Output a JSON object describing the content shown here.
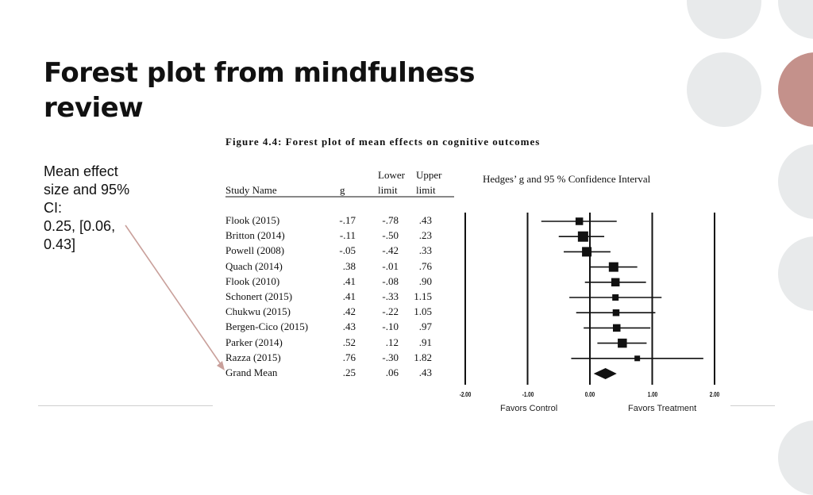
{
  "slide": {
    "title_line1": "Forest plot from mindfulness",
    "title_line2": "review",
    "note_lines": [
      "Mean effect",
      "size and 95%",
      "CI:",
      "0.25, [0.06,",
      "0.43]"
    ]
  },
  "colors": {
    "accent_rose": "#c4918b",
    "deco_gray": "#e8eaeb",
    "arrow": "#c9a09b"
  },
  "chart_data": {
    "type": "forest",
    "title": "Figure 4.4: Forest plot of mean effects on cognitive outcomes",
    "table_headers": {
      "study": "Study Name",
      "g": "g",
      "lower_top": "Lower",
      "lower_bottom": "limit",
      "upper_top": "Upper",
      "upper_bottom": "limit"
    },
    "plot_title": "Hedges’ g and 95 % Confidence Interval",
    "xlim": [
      -2,
      2
    ],
    "x_ticks": [
      "-2.00",
      "-1.00",
      "0.00",
      "1.00",
      "2.00"
    ],
    "x_tick_values": [
      -2,
      -1,
      0,
      1,
      2
    ],
    "xlabel_left": "Favors Control",
    "xlabel_right": "Favors Treatment",
    "studies": [
      {
        "name": "Flook (2015)",
        "g_label": "-.17",
        "lower_label": "-.78",
        "upper_label": ".43",
        "g": -0.17,
        "lower": -0.78,
        "upper": 0.43,
        "weight": 0.55
      },
      {
        "name": "Britton (2014)",
        "g_label": "-.11",
        "lower_label": "-.50",
        "upper_label": ".23",
        "g": -0.11,
        "lower": -0.5,
        "upper": 0.23,
        "weight": 0.9
      },
      {
        "name": "Powell (2008)",
        "g_label": "-.05",
        "lower_label": "-.42",
        "upper_label": ".33",
        "g": -0.05,
        "lower": -0.42,
        "upper": 0.33,
        "weight": 0.8
      },
      {
        "name": "Quach (2014)",
        "g_label": ".38",
        "lower_label": "-.01",
        "upper_label": ".76",
        "g": 0.38,
        "lower": -0.01,
        "upper": 0.76,
        "weight": 0.8
      },
      {
        "name": "Flook (2010)",
        "g_label": ".41",
        "lower_label": "-.08",
        "upper_label": ".90",
        "g": 0.41,
        "lower": -0.08,
        "upper": 0.9,
        "weight": 0.65
      },
      {
        "name": "Schonert (2015)",
        "g_label": ".41",
        "lower_label": "-.33",
        "upper_label": "1.15",
        "g": 0.41,
        "lower": -0.33,
        "upper": 1.15,
        "weight": 0.4
      },
      {
        "name": "Chukwu (2015)",
        "g_label": ".42",
        "lower_label": "-.22",
        "upper_label": "1.05",
        "g": 0.42,
        "lower": -0.22,
        "upper": 1.05,
        "weight": 0.45
      },
      {
        "name": "Bergen-Cico (2015)",
        "g_label": ".43",
        "lower_label": "-.10",
        "upper_label": ".97",
        "g": 0.43,
        "lower": -0.1,
        "upper": 0.97,
        "weight": 0.55
      },
      {
        "name": "Parker (2014)",
        "g_label": ".52",
        "lower_label": ".12",
        "upper_label": ".91",
        "g": 0.52,
        "lower": 0.12,
        "upper": 0.91,
        "weight": 0.75
      },
      {
        "name": "Razza (2015)",
        "g_label": ".76",
        "lower_label": "-.30",
        "upper_label": "1.82",
        "g": 0.76,
        "lower": -0.3,
        "upper": 1.82,
        "weight": 0.3
      }
    ],
    "grand_mean": {
      "name": "Grand Mean",
      "g_label": ".25",
      "lower_label": ".06",
      "upper_label": ".43",
      "g": 0.25,
      "lower": 0.06,
      "upper": 0.43
    }
  }
}
